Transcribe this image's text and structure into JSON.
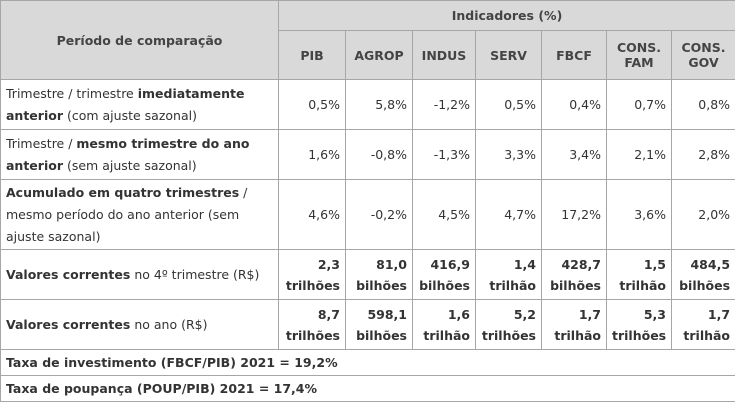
{
  "header": {
    "period_label": "Período de comparação",
    "indicators_label": "Indicadores (%)",
    "columns": [
      {
        "l1": "PIB",
        "l2": ""
      },
      {
        "l1": "AGROP",
        "l2": ""
      },
      {
        "l1": "INDUS",
        "l2": ""
      },
      {
        "l1": "SERV",
        "l2": ""
      },
      {
        "l1": "FBCF",
        "l2": ""
      },
      {
        "l1": "CONS.",
        "l2": "FAM"
      },
      {
        "l1": "CONS.",
        "l2": "GOV"
      }
    ]
  },
  "rows": [
    {
      "label_parts": [
        {
          "text": "Trimestre / trimestre ",
          "bold": false
        },
        {
          "text": "imediatamente anterior",
          "bold": true
        },
        {
          "text": " (com ajuste sazonal)",
          "bold": false
        }
      ],
      "values": [
        "0,5%",
        "5,8%",
        "-1,2%",
        "0,5%",
        "0,4%",
        "0,7%",
        "0,8%"
      ]
    },
    {
      "label_parts": [
        {
          "text": "Trimestre / ",
          "bold": false
        },
        {
          "text": "mesmo trimestre do ano anterior",
          "bold": true
        },
        {
          "text": " (sem ajuste sazonal)",
          "bold": false
        }
      ],
      "values": [
        "1,6%",
        "-0,8%",
        "-1,3%",
        "3,3%",
        "3,4%",
        "2,1%",
        "2,8%"
      ]
    },
    {
      "label_parts": [
        {
          "text": "Acumulado em quatro trimestres",
          "bold": true
        },
        {
          "text": " / mesmo período do ano anterior (sem ajuste sazonal)",
          "bold": false
        }
      ],
      "values": [
        "4,6%",
        "-0,2%",
        "4,5%",
        "4,7%",
        "17,2%",
        "3,6%",
        "2,0%"
      ]
    }
  ],
  "current_rows": [
    {
      "label_bold": "Valores correntes",
      "label_rest": " no 4º trimestre (R$)",
      "values": [
        {
          "n": "2,3",
          "u": "trilhões"
        },
        {
          "n": "81,0",
          "u": "bilhões"
        },
        {
          "n": "416,9",
          "u": "bilhões"
        },
        {
          "n": "1,4",
          "u": "trilhão"
        },
        {
          "n": "428,7",
          "u": "bilhões"
        },
        {
          "n": "1,5",
          "u": "trilhão"
        },
        {
          "n": "484,5",
          "u": "bilhões"
        }
      ]
    },
    {
      "label_bold": "Valores correntes",
      "label_rest": " no ano (R$)",
      "values": [
        {
          "n": "8,7",
          "u": "trilhões"
        },
        {
          "n": "598,1",
          "u": "bilhões"
        },
        {
          "n": "1,6",
          "u": "trilhão"
        },
        {
          "n": "5,2",
          "u": "trilhões"
        },
        {
          "n": "1,7",
          "u": "trilhão"
        },
        {
          "n": "5,3",
          "u": "trilhões"
        },
        {
          "n": "1,7",
          "u": "trilhão"
        }
      ]
    }
  ],
  "footer": {
    "investment": "Taxa de investimento (FBCF/PIB) 2021 = 19,2%",
    "savings": "Taxa de poupança (POUP/PIB) 2021 = 17,4%"
  }
}
